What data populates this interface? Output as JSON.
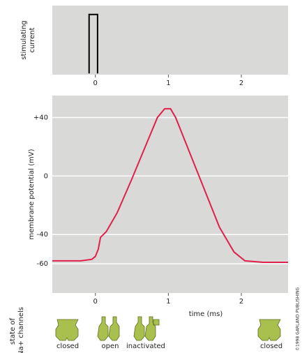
{
  "chart_data": [
    {
      "type": "line",
      "ylabel": [
        "stimulating",
        "current"
      ],
      "x": [
        -0.086,
        -0.086,
        0.03,
        0.03
      ],
      "series": [
        {
          "color": "#000000",
          "values": [
            0,
            1,
            1,
            0
          ]
        }
      ],
      "xlim": [
        -0.59,
        2.64
      ],
      "xticks": [
        0,
        1,
        2
      ],
      "ylim": [
        -0.02,
        1.15
      ],
      "background": "#d9d9d7"
    },
    {
      "type": "line",
      "ylabel": [
        "membrane potential (mV)"
      ],
      "xlabel": "time (ms)",
      "x": [
        -0.59,
        -0.2,
        -0.05,
        0.0,
        0.04,
        0.07,
        0.15,
        0.3,
        0.5,
        0.7,
        0.85,
        0.95,
        1.03,
        1.1,
        1.3,
        1.5,
        1.7,
        1.9,
        2.05,
        2.3,
        2.64
      ],
      "series": [
        {
          "color": "#e0204a",
          "values": [
            -58,
            -58,
            -57,
            -55,
            -50,
            -42,
            -38,
            -25,
            -2,
            22,
            40,
            46,
            46,
            40,
            15,
            -10,
            -35,
            -52,
            -58,
            -59,
            -59
          ]
        }
      ],
      "xlim": [
        -0.59,
        2.64
      ],
      "xticks": [
        0,
        1,
        2
      ],
      "ylim": [
        -80,
        55
      ],
      "yticks": [
        {
          "value": 40,
          "label": "+40"
        },
        0,
        -40,
        -60
      ],
      "grid": true,
      "background": "#d9d9d7"
    }
  ],
  "channel_states": {
    "label": [
      "state of",
      "Na+ channels"
    ],
    "states": [
      "closed",
      "open",
      "inactivated",
      "closed"
    ]
  },
  "credit": "©1998 GARLAND PUBLISHING"
}
